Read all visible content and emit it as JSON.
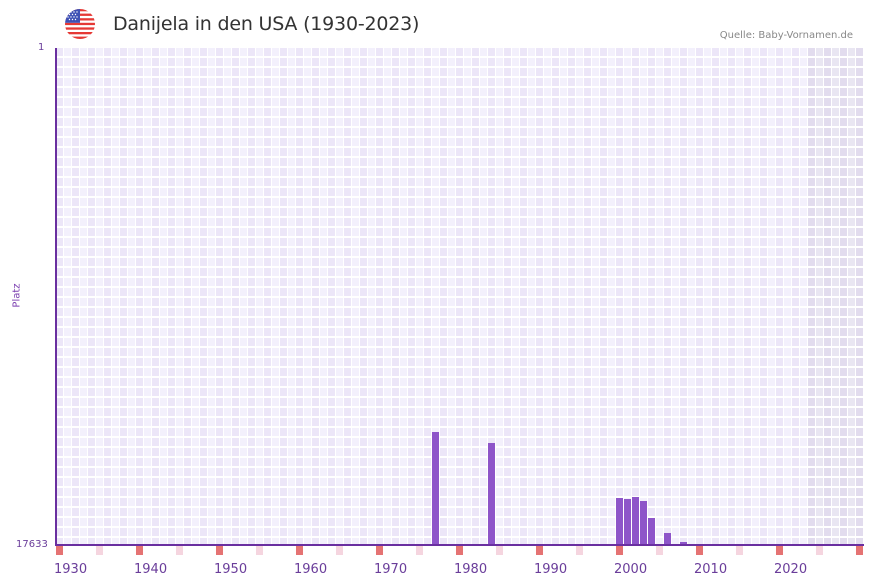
{
  "header": {
    "title": "Danijela in den USA (1930-2023)",
    "source": "Quelle: Baby-Vornamen.de",
    "flag_icon": "us-flag-icon"
  },
  "chart_data": {
    "type": "bar",
    "title": "Danijela in den USA (1930-2023)",
    "xlabel": "",
    "ylabel": "Platz",
    "y_inverted": true,
    "ylim": [
      1,
      17633
    ],
    "y_ticks": [
      "1",
      "17633"
    ],
    "x_ticks": [
      "1930",
      "1940",
      "1950",
      "1960",
      "1970",
      "1980",
      "1990",
      "2000",
      "2010",
      "2020"
    ],
    "x_range": [
      1930,
      2030
    ],
    "future_shaded_from": 2024,
    "grid": true,
    "categories": [
      1977,
      1984,
      2000,
      2001,
      2002,
      2003,
      2004,
      2006,
      2007,
      2008
    ],
    "values": [
      13624,
      14013,
      15964,
      16000,
      15929,
      16071,
      16674,
      17206,
      17597,
      17526
    ],
    "series": [
      {
        "name": "Platz",
        "points": [
          {
            "year": 1977,
            "rank": 13624
          },
          {
            "year": 1984,
            "rank": 14013
          },
          {
            "year": 2000,
            "rank": 15964
          },
          {
            "year": 2001,
            "rank": 16000
          },
          {
            "year": 2002,
            "rank": 15929
          },
          {
            "year": 2003,
            "rank": 16071
          },
          {
            "year": 2004,
            "rank": 16674
          },
          {
            "year": 2006,
            "rank": 17206
          },
          {
            "year": 2007,
            "rank": 17597
          },
          {
            "year": 2008,
            "rank": 17526
          }
        ]
      }
    ],
    "legend": null
  },
  "axis": {
    "y_top": "1",
    "y_bottom": "17633",
    "y_title": "Platz"
  },
  "colors": {
    "bar": "#8e55c9",
    "axis": "#6a2fa0",
    "decade_marker": "#e57373",
    "half_decade_marker": "#f5d5df",
    "grid_a": "#ece6f8",
    "grid_b": "#f3f0fc",
    "future_a": "#e2dcee",
    "future_b": "#e9e6f2"
  }
}
